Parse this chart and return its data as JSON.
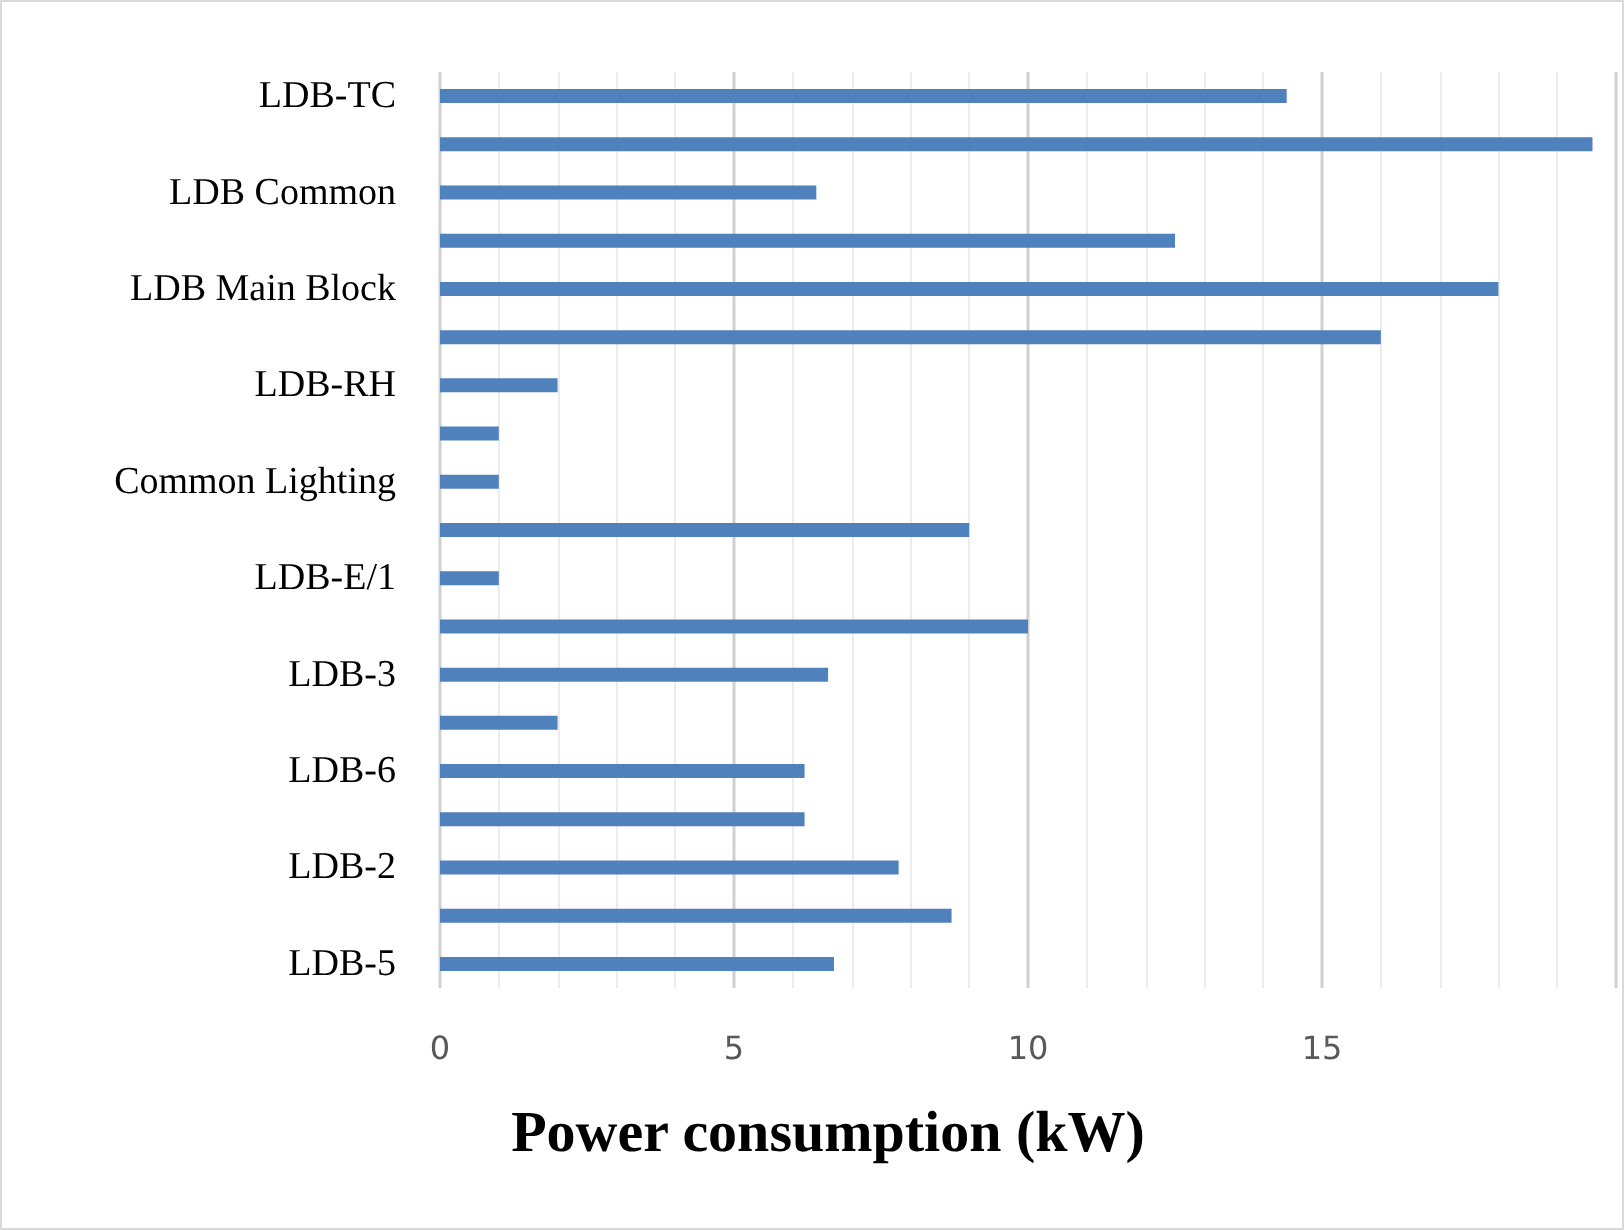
{
  "chart_data": {
    "type": "bar",
    "orientation": "horizontal",
    "xlabel": "Power consumption (kW)",
    "categories": [
      "LDB-TC",
      null,
      "LDB Common",
      null,
      "LDB Main Block",
      null,
      "LDB-RH",
      null,
      "Common Lighting",
      null,
      "LDB-E/1",
      null,
      "LDB-3",
      null,
      "LDB-6",
      null,
      "LDB-2",
      null,
      "LDB-5"
    ],
    "values": [
      14.4,
      19.6,
      6.4,
      12.5,
      18.0,
      16.0,
      2.0,
      1.0,
      1.0,
      9.0,
      1.0,
      10.0,
      6.6,
      2.0,
      6.2,
      6.2,
      7.8,
      8.7,
      6.7
    ],
    "color": "#4f81bd",
    "xlim": [
      0,
      20
    ],
    "xticks": [
      0,
      5,
      10,
      15,
      {
        "value": 20,
        "label": null
      }
    ],
    "grid": "x"
  }
}
